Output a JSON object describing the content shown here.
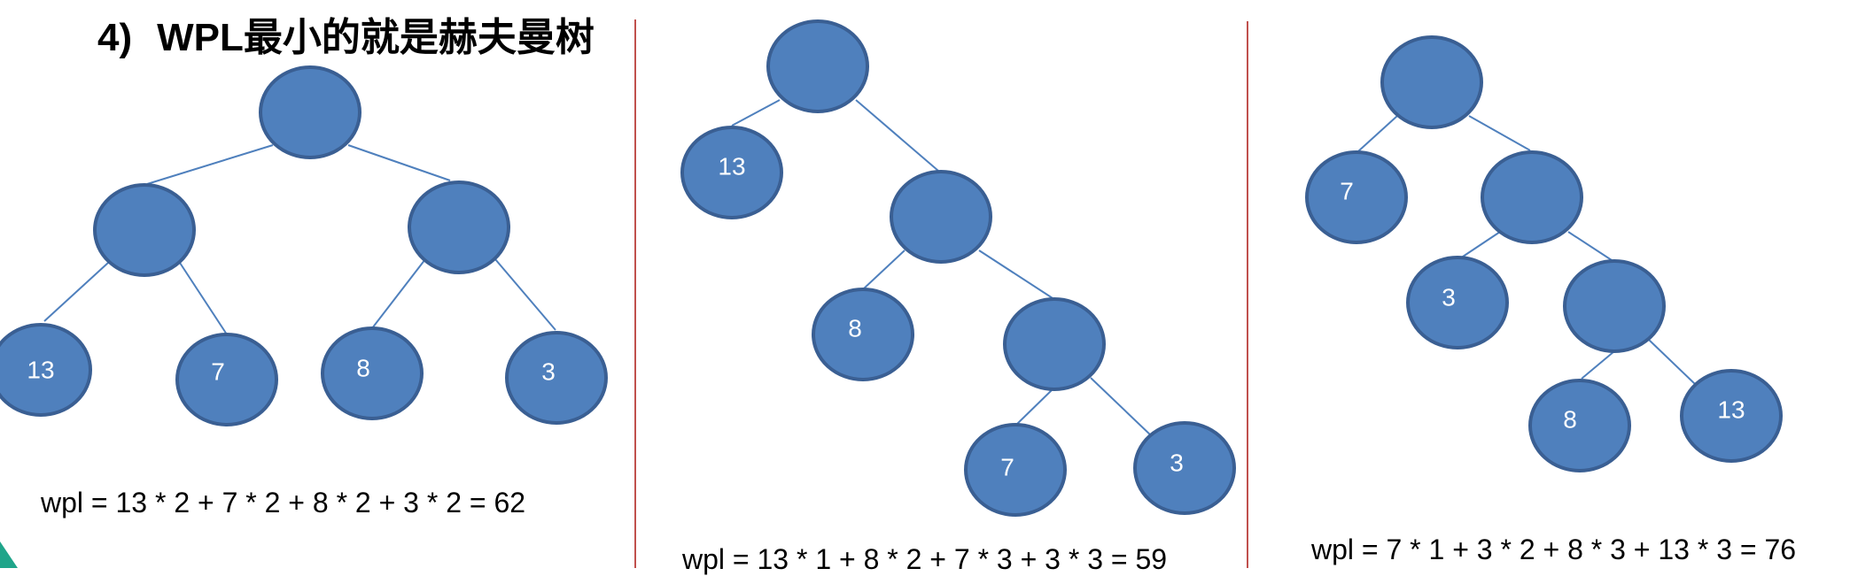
{
  "heading": {
    "number": "4)",
    "text": "WPL最小的就是赫夫曼树"
  },
  "colors": {
    "node_fill": "#4f80bd",
    "node_stroke": "#3a5f93",
    "edge": "#4f80bd",
    "divider": "#c0504d",
    "label": "#ffffff"
  },
  "trees": [
    {
      "formula": "wpl = 13 * 2 + 7 * 2 + 8 * 2 + 3 * 2 = 62",
      "leaf_labels": [
        "13",
        "7",
        "8",
        "3"
      ]
    },
    {
      "formula": "wpl = 13 * 1 + 8 * 2 + 7 * 3 + 3 * 3 = 59",
      "leaf_labels": [
        "13",
        "8",
        "7",
        "3"
      ]
    },
    {
      "formula": "wpl = 7 * 1 + 3 * 2 + 8 * 3 + 13 * 3 = 76",
      "leaf_labels": [
        "7",
        "3",
        "8",
        "13"
      ]
    }
  ]
}
